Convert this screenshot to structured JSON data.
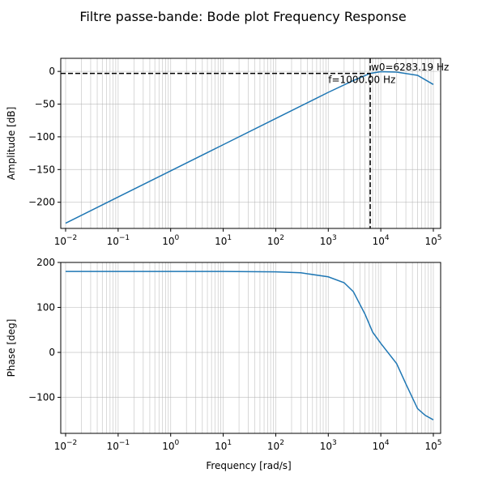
{
  "chart_data": {
    "title": "Filtre passe-bande: Bode plot Frequency Response",
    "xlabel": "Frequency [rad/s]",
    "x_scale": "log",
    "xlim": [
      0.01,
      100000
    ],
    "x_ticks": [
      0.01,
      0.1,
      1,
      10,
      100,
      1000,
      10000,
      100000
    ],
    "x_tick_labels": [
      "10^-2",
      "10^-1",
      "10^0",
      "10^1",
      "10^2",
      "10^3",
      "10^4",
      "10^5"
    ],
    "grid": true,
    "subplots": [
      {
        "type": "line",
        "ylabel": "Amplitude [dB]",
        "ylim": [
          -240,
          20
        ],
        "y_ticks": [
          0,
          -50,
          -100,
          -150,
          -200
        ],
        "y_tick_labels": [
          "0",
          "−50",
          "−100",
          "−150",
          "−200"
        ],
        "color": "#1f77b4",
        "x": [
          0.01,
          0.1,
          1,
          10,
          100,
          1000,
          3000,
          6283.19,
          10000,
          20000,
          50000,
          100000
        ],
        "y": [
          -232,
          -192,
          -152,
          -112,
          -72,
          -32,
          -14,
          -3,
          -0.5,
          -1,
          -6,
          -20
        ],
        "annotations": [
          {
            "text": "w0=6283.19 Hz",
            "x": 6283.19,
            "y": 0,
            "color": "#000000"
          },
          {
            "text": "f=1000.00 Hz",
            "x": 1000,
            "y": -18,
            "color": "#ff0000"
          }
        ],
        "vline": {
          "x": 6283.19,
          "style": "dashed",
          "color": "#000000"
        },
        "hline": {
          "y": -3,
          "style": "dashed",
          "color": "#000000"
        }
      },
      {
        "type": "line",
        "ylabel": "Phase [deg]",
        "ylim": [
          -180,
          200
        ],
        "y_ticks": [
          200,
          100,
          0,
          -100
        ],
        "y_tick_labels": [
          "200",
          "100",
          "0",
          "−100"
        ],
        "color": "#1f77b4",
        "x": [
          0.01,
          0.1,
          1,
          10,
          100,
          300,
          1000,
          2000,
          3000,
          5000,
          7000,
          10000,
          20000,
          30000,
          50000,
          70000,
          100000
        ],
        "y": [
          180,
          180,
          180,
          180,
          179,
          177,
          168,
          155,
          135,
          85,
          45,
          20,
          -25,
          -70,
          -125,
          -140,
          -150
        ]
      }
    ]
  }
}
